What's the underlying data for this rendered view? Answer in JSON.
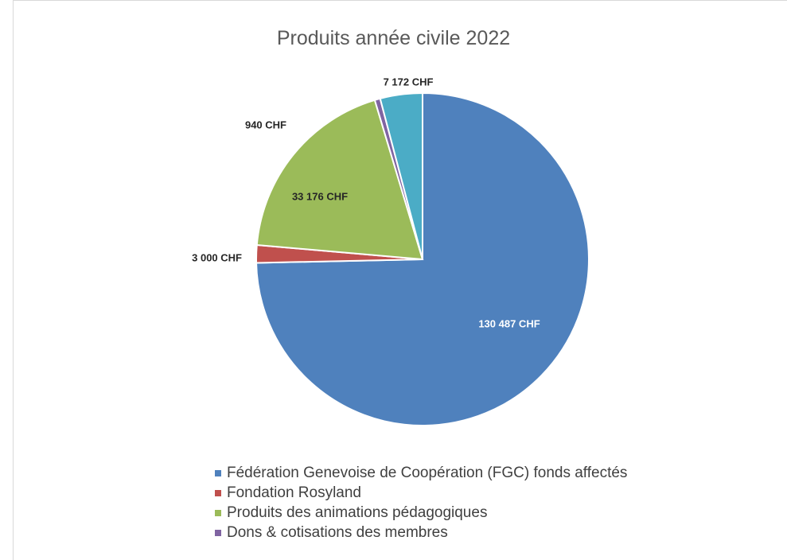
{
  "chart_data": {
    "type": "pie",
    "title": "Produits année civile 2022",
    "unit": "CHF",
    "slices": [
      {
        "name": "Fédération Genevoise de Coopération (FGC) fonds affectés",
        "value": 130487,
        "label": "130 487 CHF",
        "color": "#4f81bd",
        "label_color": "#ffffff"
      },
      {
        "name": "Fondation Rosyland",
        "value": 3000,
        "label": "3 000 CHF",
        "color": "#c0504d",
        "label_color": "#262626"
      },
      {
        "name": "Produits des animations pédagogiques",
        "value": 33176,
        "label": "33 176 CHF",
        "color": "#9bbb59",
        "label_color": "#262626"
      },
      {
        "name": "Dons & cotisations des membres",
        "value": 940,
        "label": "940 CHF",
        "color": "#8064a2",
        "label_color": "#262626"
      },
      {
        "name": "",
        "value": 7172,
        "label": "7 172 CHF",
        "color": "#4bacc6",
        "label_color": "#262626"
      }
    ],
    "legend_position": "bottom",
    "legend_entries": [
      "Fédération Genevoise de Coopération (FGC) fonds affectés",
      "Fondation Rosyland",
      "Produits des animations pédagogiques",
      "Dons & cotisations des membres"
    ]
  }
}
